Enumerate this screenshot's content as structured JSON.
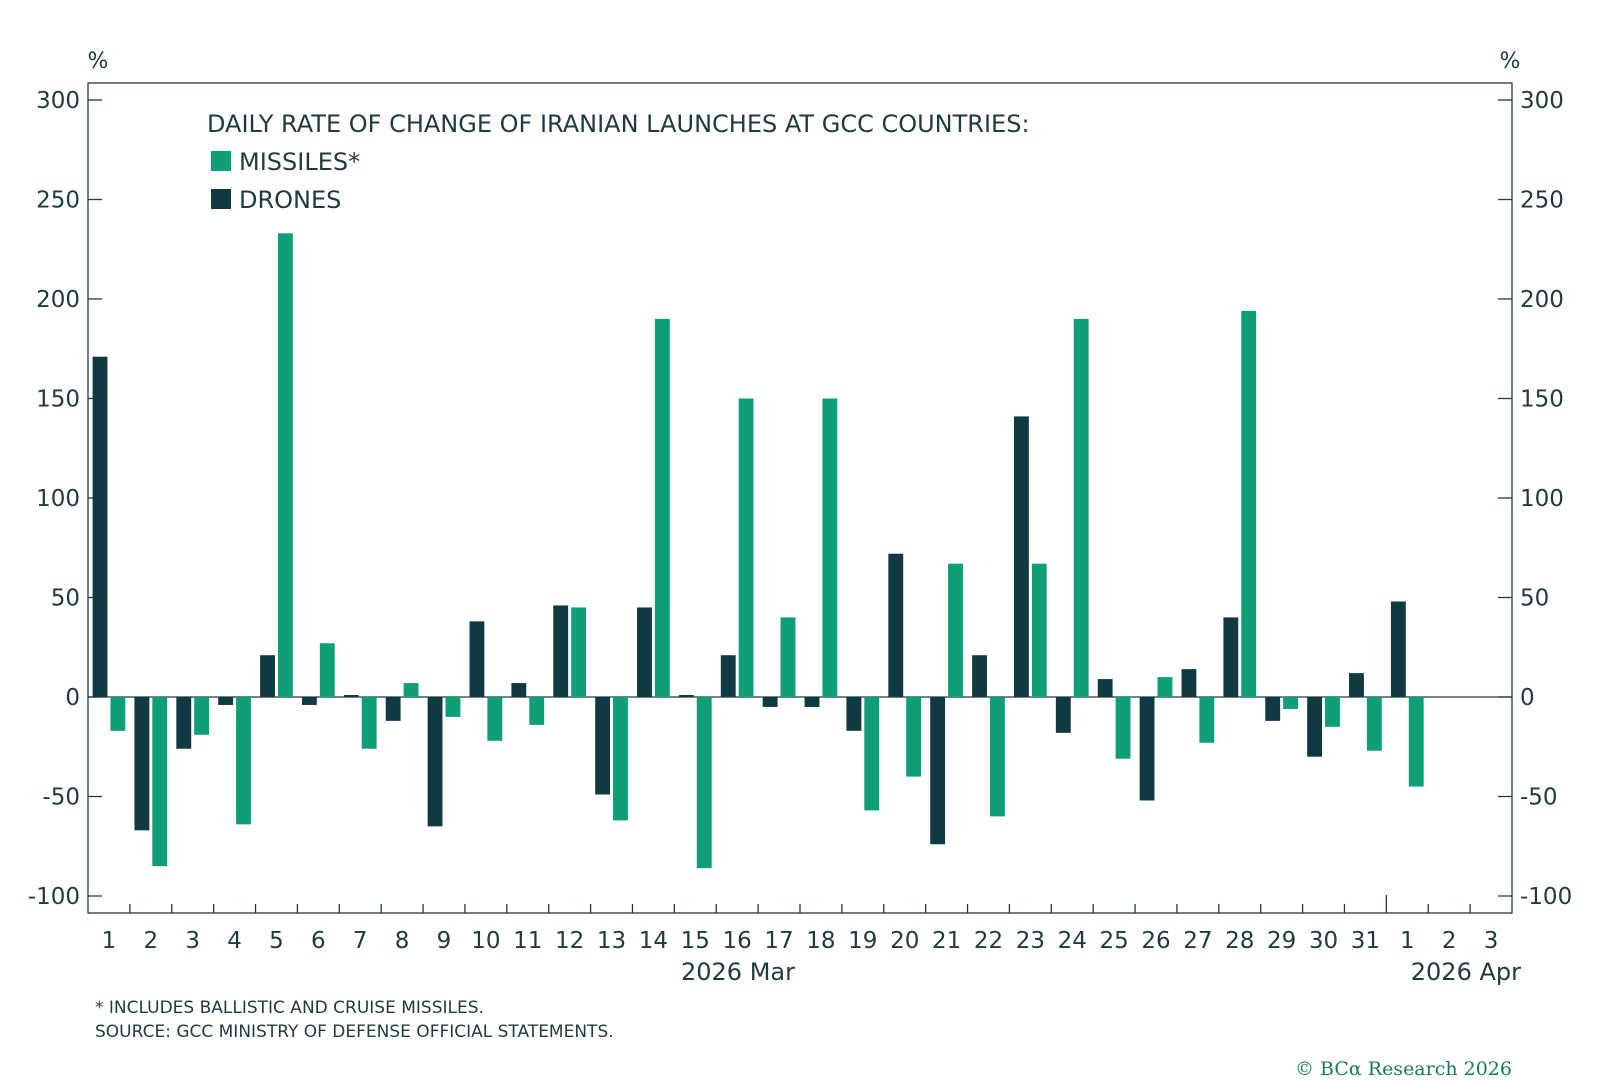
{
  "chart_data": {
    "type": "bar",
    "title": "DAILY RATE OF CHANGE OF IRANIAN LAUNCHES AT GCC COUNTRIES:",
    "y_unit_left": "%",
    "y_unit_right": "%",
    "ylim": [
      -110,
      300
    ],
    "yticks": [
      "300",
      "250",
      "200",
      "150",
      "100",
      "50",
      "0",
      "-50",
      "-100"
    ],
    "categories": [
      "1",
      "2",
      "3",
      "4",
      "5",
      "6",
      "7",
      "8",
      "9",
      "10",
      "11",
      "12",
      "13",
      "14",
      "15",
      "16",
      "17",
      "18",
      "19",
      "20",
      "21",
      "22",
      "23",
      "24",
      "25",
      "26",
      "27",
      "28",
      "29",
      "30",
      "31",
      "1",
      "2",
      "3"
    ],
    "months": [
      "2026 Mar",
      "2026 Apr"
    ],
    "colors": {
      "missiles": "#0e9e78",
      "drones": "#103a42",
      "axis": "#1f3b3f",
      "copyright": "#1b7a55"
    },
    "series": [
      {
        "name": "DRONES",
        "values": [
          171,
          -67,
          -26,
          -4,
          21,
          -4,
          1,
          -12,
          -65,
          38,
          7,
          46,
          -49,
          45,
          1,
          21,
          -5,
          -5,
          -17,
          72,
          -74,
          21,
          141,
          -18,
          9,
          -52,
          14,
          40,
          -12,
          -30,
          12,
          48,
          null,
          null
        ]
      },
      {
        "name": "MISSILES*",
        "values": [
          -17,
          -85,
          -19,
          -64,
          233,
          27,
          -26,
          7,
          -10,
          -22,
          -14,
          45,
          -62,
          190,
          -86,
          150,
          40,
          150,
          -57,
          -40,
          67,
          -60,
          67,
          190,
          -31,
          10,
          -23,
          194,
          -6,
          -15,
          -27,
          -45,
          null,
          null
        ]
      }
    ],
    "footnote": "* INCLUDES BALLISTIC AND CRUISE MISSILES.",
    "source": "SOURCE: GCC MINISTRY OF DEFENSE OFFICIAL STATEMENTS.",
    "copyright": "© BCα Research 2026"
  }
}
